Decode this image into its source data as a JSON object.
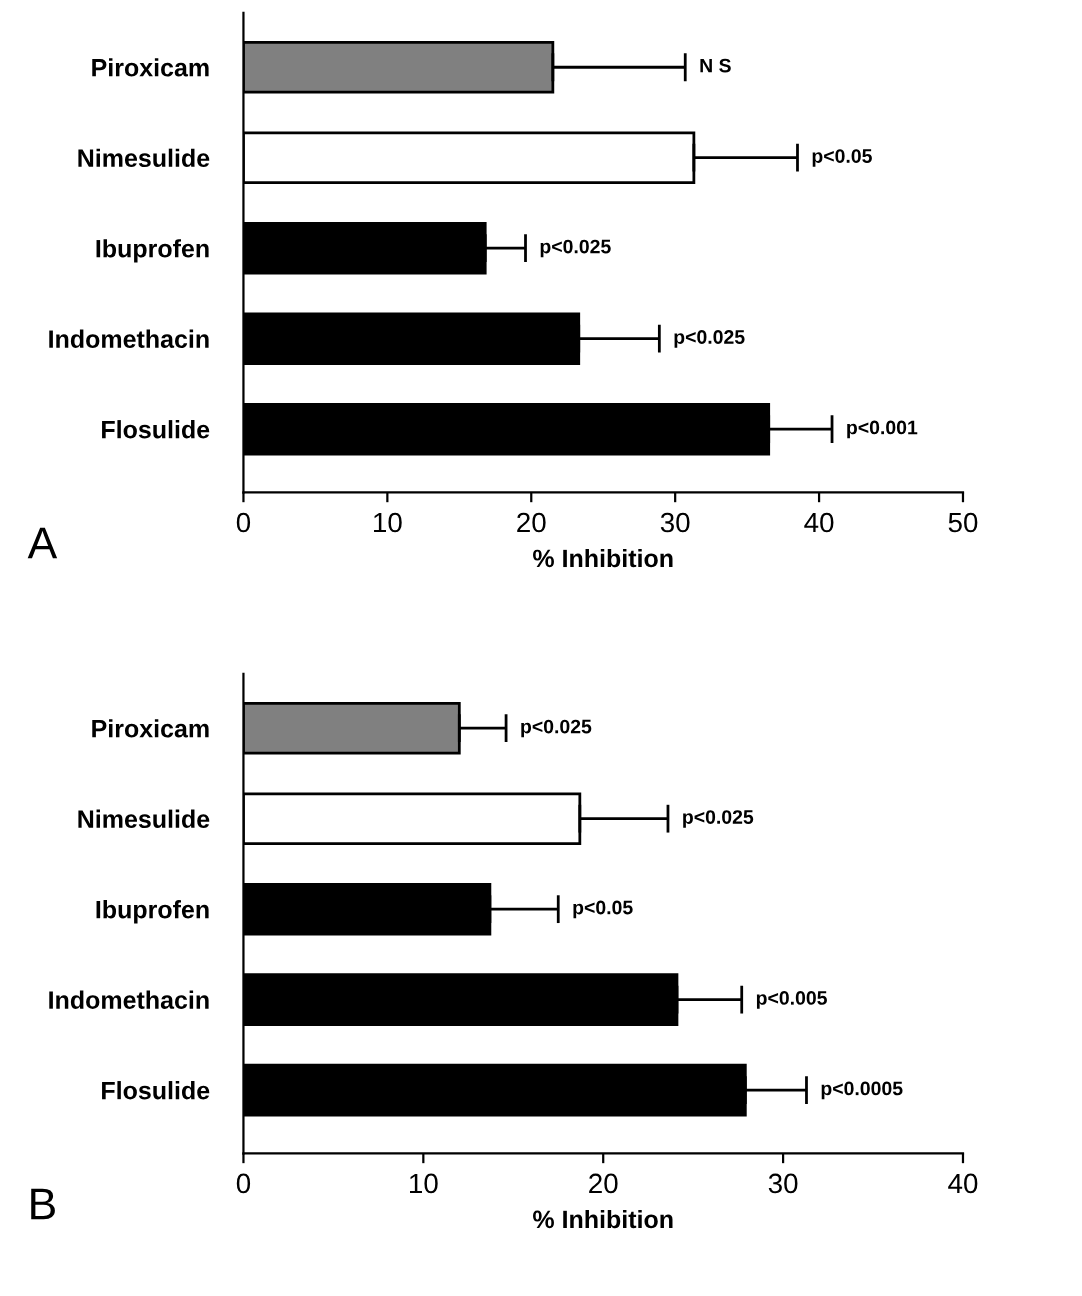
{
  "chart_data": [
    {
      "type": "bar",
      "orientation": "horizontal",
      "categories": [
        "Piroxicam",
        "Nimesulide",
        "Ibuprofen",
        "Indomethacin",
        "Flosulide"
      ],
      "values": [
        21.5,
        31.3,
        16.8,
        23.3,
        36.5
      ],
      "errors": [
        [
          21.5,
          30.7
        ],
        [
          31.3,
          38.5
        ],
        [
          16.8,
          19.6
        ],
        [
          23.3,
          28.9
        ],
        [
          36.5,
          40.9
        ]
      ],
      "colors": [
        "#808080",
        "#ffffff",
        "#000000",
        "#000000",
        "#000000"
      ],
      "xlabel": "% Inhibition",
      "xlim": [
        0,
        50
      ],
      "xticks": [
        0,
        10,
        20,
        30,
        40,
        50
      ],
      "grid": false,
      "legend": false,
      "annotations": [
        "A",
        {
          "text": "N S",
          "x": 30.7,
          "y": "Piroxicam"
        },
        {
          "text": "p<0.05",
          "x": 38.5,
          "y": "Nimesulide"
        },
        {
          "text": "p<0.025",
          "x": 19.6,
          "y": "Ibuprofen"
        },
        {
          "text": "p<0.025",
          "x": 28.9,
          "y": "Indomethacin"
        },
        {
          "text": "p<0.001",
          "x": 40.9,
          "y": "Flosulide"
        }
      ]
    },
    {
      "type": "bar",
      "orientation": "horizontal",
      "categories": [
        "Piroxicam",
        "Nimesulide",
        "Ibuprofen",
        "Indomethacin",
        "Flosulide"
      ],
      "values": [
        12.0,
        18.7,
        13.7,
        24.1,
        27.9
      ],
      "errors": [
        [
          12.0,
          14.6
        ],
        [
          18.7,
          23.6
        ],
        [
          13.7,
          17.5
        ],
        [
          24.1,
          27.7
        ],
        [
          27.9,
          31.3
        ]
      ],
      "colors": [
        "#808080",
        "#ffffff",
        "#000000",
        "#000000",
        "#000000"
      ],
      "xlabel": "% Inhibition",
      "xlim": [
        0,
        40
      ],
      "xticks": [
        0,
        10,
        20,
        30,
        40
      ],
      "grid": false,
      "legend": false,
      "annotations": [
        "B",
        {
          "text": "p<0.025",
          "x": 14.6,
          "y": "Piroxicam"
        },
        {
          "text": "p<0.025",
          "x": 23.6,
          "y": "Nimesulide"
        },
        {
          "text": "p<0.05",
          "x": 17.5,
          "y": "Ibuprofen"
        },
        {
          "text": "p<0.005",
          "x": 27.7,
          "y": "Indomethacin"
        },
        {
          "text": "p<0.0005",
          "x": 31.3,
          "y": "Flosulide"
        }
      ]
    }
  ]
}
